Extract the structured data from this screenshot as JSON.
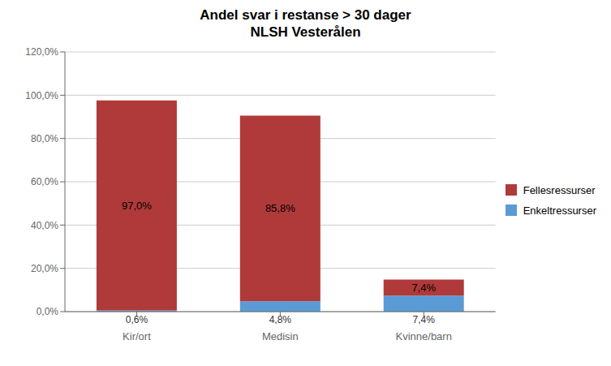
{
  "chart_data": {
    "type": "bar",
    "title": "Andel svar i restanse > 30 dager\nNLSH Vesterålen",
    "categories": [
      "Kir/ort",
      "Medisin",
      "Kvinne/barn"
    ],
    "series": [
      {
        "name": "Enkeltressurser",
        "color": "#5B9BD5",
        "values": [
          0.6,
          4.8,
          7.4
        ],
        "value_labels": [
          "0,6%",
          "4,8%",
          "7,4%"
        ]
      },
      {
        "name": "Fellesressurser",
        "color": "#B03A3A",
        "values": [
          97.0,
          85.8,
          7.4
        ],
        "value_labels": [
          "97,0%",
          "85,8%",
          "7,4%"
        ]
      }
    ],
    "stacked": true,
    "data_labels": true,
    "ylim": [
      0,
      120
    ],
    "yticks": [
      {
        "value": 0,
        "label": "0,0%"
      },
      {
        "value": 20,
        "label": "20,0%"
      },
      {
        "value": 40,
        "label": "40,0%"
      },
      {
        "value": 60,
        "label": "60,0%"
      },
      {
        "value": 80,
        "label": "80,0%"
      },
      {
        "value": 100,
        "label": "100,0%"
      },
      {
        "value": 120,
        "label": "120,0%"
      }
    ],
    "grid": true,
    "legend": "right"
  }
}
